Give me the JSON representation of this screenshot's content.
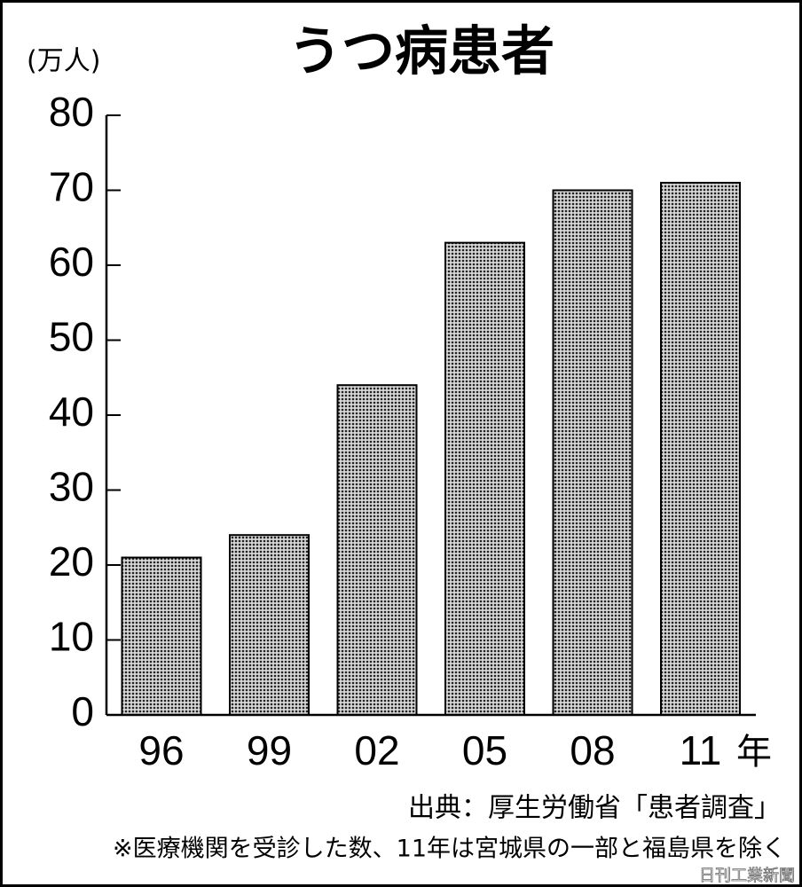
{
  "chart_data": {
    "type": "bar",
    "title": "うつ病患者",
    "y_unit": "(万人)",
    "x_unit": "年",
    "categories": [
      "96",
      "99",
      "02",
      "05",
      "08",
      "11"
    ],
    "values": [
      21,
      24,
      44,
      63,
      70,
      71
    ],
    "color": "#8a8a8a",
    "ylim": [
      0,
      80
    ],
    "yticks": [
      0,
      10,
      20,
      30,
      40,
      50,
      60,
      70,
      80
    ],
    "source": "出典：厚生労働省「患者調査」",
    "note": "※医療機関を受診した数、11年は宮城県の一部と福島県を除く",
    "credit": "日刊工業新聞"
  }
}
